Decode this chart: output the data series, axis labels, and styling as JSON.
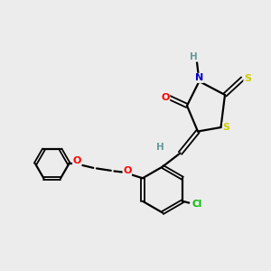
{
  "bg_color": "#ececec",
  "bond_color": "#000000",
  "atom_colors": {
    "O": "#ff0000",
    "N": "#0000cc",
    "S": "#cccc00",
    "Cl": "#00bb00",
    "H": "#669999",
    "C": "#000000"
  },
  "figsize": [
    3.0,
    3.0
  ],
  "dpi": 100
}
